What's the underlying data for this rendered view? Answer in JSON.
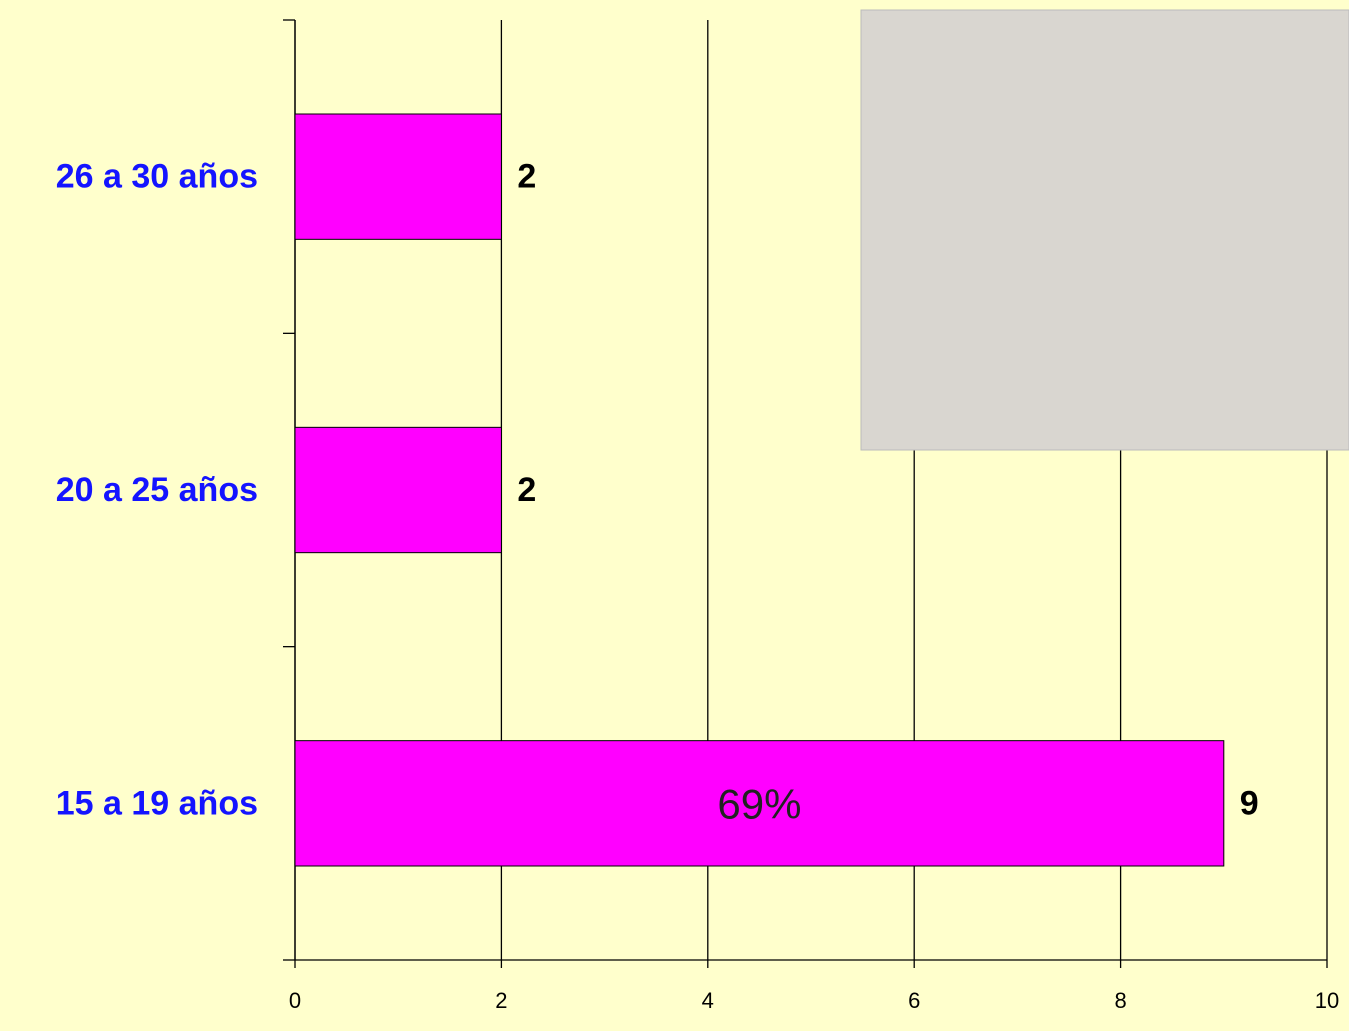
{
  "chart_data": {
    "type": "bar",
    "orientation": "horizontal",
    "categories": [
      "15 a 19 años",
      "20 a 25 años",
      "26 a 30 años"
    ],
    "values": [
      9,
      2,
      2
    ],
    "color": "#ff00ff",
    "xlim": [
      0,
      10
    ],
    "xticks": [
      0,
      2,
      4,
      6,
      8,
      10
    ],
    "grid": true,
    "annotation": "69%"
  }
}
